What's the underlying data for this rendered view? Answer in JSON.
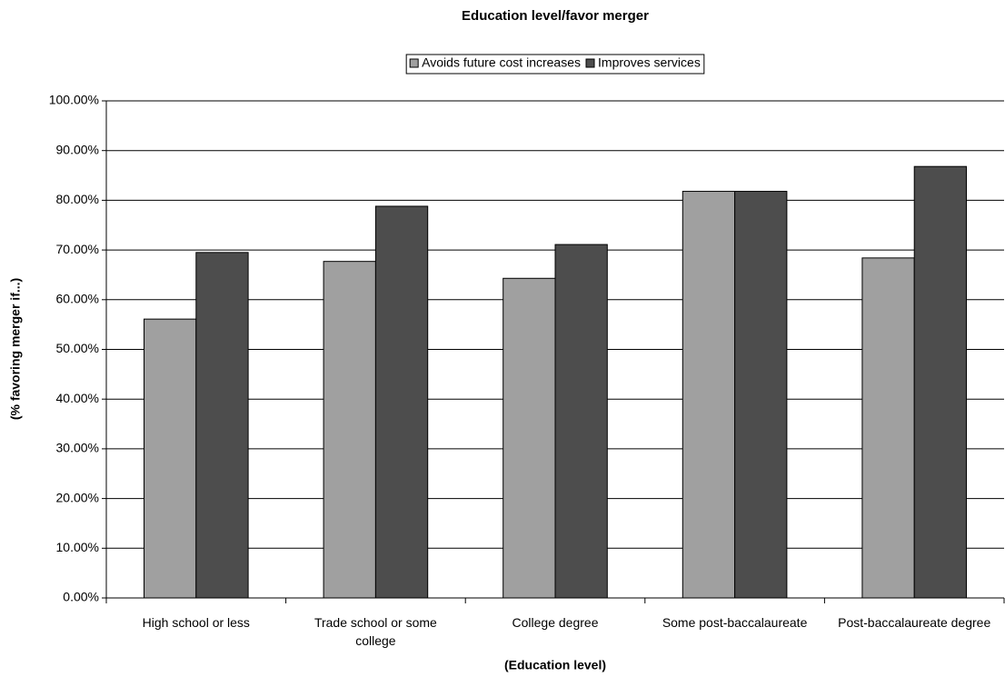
{
  "chart_data": {
    "type": "bar",
    "title": "Education level/favor merger",
    "x_label": "(Education level)",
    "y_label": "(% favoring merger if...)",
    "categories": [
      "High school or less",
      "Trade school or some college",
      "College degree",
      "Some post-baccalaureate",
      "Post-baccalaureate degree"
    ],
    "series": [
      {
        "name": "Avoids future cost increases",
        "color": "#a0a0a0",
        "values": [
          56.1,
          67.7,
          64.3,
          81.8,
          68.4
        ]
      },
      {
        "name": "Improves services",
        "color": "#4d4d4d",
        "values": [
          69.5,
          78.8,
          71.1,
          81.8,
          86.8
        ]
      }
    ],
    "ylim": [
      0,
      100
    ],
    "yticks": [
      {
        "value": 0,
        "label": "0.00%"
      },
      {
        "value": 10,
        "label": "10.00%"
      },
      {
        "value": 20,
        "label": "20.00%"
      },
      {
        "value": 30,
        "label": "30.00%"
      },
      {
        "value": 40,
        "label": "40.00%"
      },
      {
        "value": 50,
        "label": "50.00%"
      },
      {
        "value": 60,
        "label": "60.00%"
      },
      {
        "value": 70,
        "label": "70.00%"
      },
      {
        "value": 80,
        "label": "80.00%"
      },
      {
        "value": 90,
        "label": "90.00%"
      },
      {
        "value": 100,
        "label": "100.00%"
      }
    ],
    "grid": true,
    "legend": "top"
  }
}
